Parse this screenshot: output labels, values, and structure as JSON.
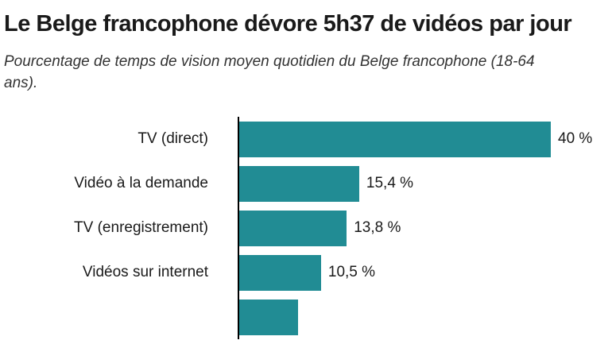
{
  "header": {
    "title": "Le Belge francophone dévore 5h37 de vidéos par jour",
    "subtitle": "Pourcentage de temps de vision moyen quotidien du Belge francophone (18-64 ans)."
  },
  "chart_data": {
    "type": "bar",
    "orientation": "horizontal",
    "title": "Le Belge francophone dévore 5h37 de vidéos par jour",
    "subtitle": "Pourcentage de temps de vision moyen quotidien du Belge francophone (18-64 ans).",
    "unit": "%",
    "xlim": [
      0,
      40
    ],
    "grid": false,
    "legend": false,
    "bar_color": "#218c94",
    "axis_color": "#000000",
    "categories": [
      "TV (direct)",
      "Vidéo à la demande",
      "TV (enregistrement)",
      "Vidéos sur internet",
      ""
    ],
    "values": [
      40,
      15.4,
      13.8,
      10.5,
      7.6
    ],
    "items": [
      {
        "label": "TV (direct)",
        "value": 40,
        "value_label": "40 %"
      },
      {
        "label": "Vidéo à la demande",
        "value": 15.4,
        "value_label": "15,4 %"
      },
      {
        "label": "TV (enregistrement)",
        "value": 13.8,
        "value_label": "13,8 %"
      },
      {
        "label": "Vidéos sur internet",
        "value": 10.5,
        "value_label": "10,5 %"
      },
      {
        "label": "",
        "value": 7.6,
        "value_label": "",
        "partial": true
      }
    ]
  }
}
